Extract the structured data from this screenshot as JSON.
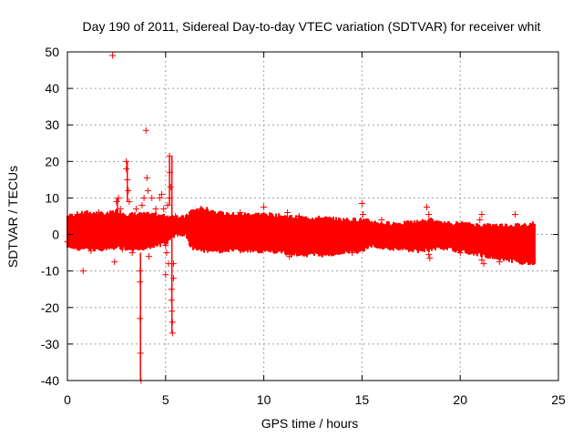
{
  "chart_data": {
    "type": "scatter",
    "title": "Day 190 of 2011, Sidereal Day-to-day VTEC variation (SDTVAR) for receiver whit",
    "xlabel": "GPS time / hours",
    "ylabel": "SDTVAR / TECUs",
    "xlim": [
      0,
      25
    ],
    "ylim": [
      -40,
      50
    ],
    "xticks": [
      0,
      5,
      10,
      15,
      20,
      25
    ],
    "yticks": [
      -40,
      -30,
      -20,
      -10,
      0,
      10,
      20,
      30,
      40,
      50
    ],
    "xtick_labels": [
      "0",
      "5",
      "10",
      "15",
      "20",
      "25"
    ],
    "ytick_labels": [
      "-40",
      "-30",
      "-20",
      "-10",
      "0",
      "10",
      "20",
      "30",
      "40",
      "50"
    ],
    "grid": true,
    "marker": "plus",
    "color": "#ff0000",
    "band": [
      {
        "t": 0.0,
        "lo": -3.0,
        "hi": 4.5
      },
      {
        "t": 1.0,
        "lo": -3.5,
        "hi": 5.5
      },
      {
        "t": 2.0,
        "lo": -3.5,
        "hi": 5.0
      },
      {
        "t": 2.5,
        "lo": -3.0,
        "hi": 6.0
      },
      {
        "t": 3.0,
        "lo": -3.5,
        "hi": 5.0
      },
      {
        "t": 3.5,
        "lo": -4.0,
        "hi": 5.0
      },
      {
        "t": 4.0,
        "lo": -3.0,
        "hi": 5.0
      },
      {
        "t": 4.5,
        "lo": -2.5,
        "hi": 5.0
      },
      {
        "t": 5.0,
        "lo": -2.0,
        "hi": 4.5
      },
      {
        "t": 5.5,
        "lo": 0.5,
        "hi": 4.5
      },
      {
        "t": 6.0,
        "lo": 0.5,
        "hi": 4.0
      },
      {
        "t": 6.3,
        "lo": -3.0,
        "hi": 6.0
      },
      {
        "t": 7.0,
        "lo": -4.0,
        "hi": 6.5
      },
      {
        "t": 8.0,
        "lo": -4.0,
        "hi": 5.0
      },
      {
        "t": 9.0,
        "lo": -4.0,
        "hi": 5.0
      },
      {
        "t": 10.0,
        "lo": -4.0,
        "hi": 5.0
      },
      {
        "t": 11.0,
        "lo": -4.5,
        "hi": 4.5
      },
      {
        "t": 12.0,
        "lo": -5.0,
        "hi": 4.0
      },
      {
        "t": 13.0,
        "lo": -5.0,
        "hi": 4.0
      },
      {
        "t": 14.0,
        "lo": -4.5,
        "hi": 3.5
      },
      {
        "t": 15.0,
        "lo": -4.0,
        "hi": 3.5
      },
      {
        "t": 15.5,
        "lo": -2.5,
        "hi": 3.0
      },
      {
        "t": 16.0,
        "lo": -3.0,
        "hi": 2.5
      },
      {
        "t": 17.0,
        "lo": -3.5,
        "hi": 2.5
      },
      {
        "t": 18.0,
        "lo": -4.0,
        "hi": 3.0
      },
      {
        "t": 18.5,
        "lo": -3.5,
        "hi": 3.5
      },
      {
        "t": 19.0,
        "lo": -3.0,
        "hi": 2.5
      },
      {
        "t": 20.0,
        "lo": -4.0,
        "hi": 2.5
      },
      {
        "t": 21.0,
        "lo": -5.0,
        "hi": 2.0
      },
      {
        "t": 22.0,
        "lo": -6.0,
        "hi": 2.0
      },
      {
        "t": 23.0,
        "lo": -7.0,
        "hi": 2.0
      },
      {
        "t": 23.8,
        "lo": -7.5,
        "hi": 2.5
      }
    ],
    "outliers": [
      {
        "x": 0.0,
        "y": -2.0
      },
      {
        "x": 0.1,
        "y": 4.5
      },
      {
        "x": 0.5,
        "y": 5.5
      },
      {
        "x": 0.8,
        "y": -10.0
      },
      {
        "x": 1.2,
        "y": -4.5
      },
      {
        "x": 1.6,
        "y": 6.0
      },
      {
        "x": 2.2,
        "y": 3.5
      },
      {
        "x": 2.3,
        "y": 49.0
      },
      {
        "x": 2.4,
        "y": -7.5
      },
      {
        "x": 2.5,
        "y": 9.0
      },
      {
        "x": 2.6,
        "y": 10.0
      },
      {
        "x": 2.7,
        "y": 7.0
      },
      {
        "x": 2.8,
        "y": -4.0
      },
      {
        "x": 3.0,
        "y": 20.0
      },
      {
        "x": 3.0,
        "y": 18.0
      },
      {
        "x": 3.05,
        "y": 15.0
      },
      {
        "x": 3.1,
        "y": 12.0
      },
      {
        "x": 3.15,
        "y": 9.0
      },
      {
        "x": 3.0,
        "y": -3.0
      },
      {
        "x": 3.3,
        "y": -5.0
      },
      {
        "x": 3.5,
        "y": 7.0
      },
      {
        "x": 3.6,
        "y": -3.0
      },
      {
        "x": 3.7,
        "y": -10.0
      },
      {
        "x": 3.7,
        "y": -13.0
      },
      {
        "x": 3.7,
        "y": -23.0
      },
      {
        "x": 3.72,
        "y": -32.5
      },
      {
        "x": 3.75,
        "y": -40.0
      },
      {
        "x": 3.8,
        "y": 8.0
      },
      {
        "x": 3.9,
        "y": 10.0
      },
      {
        "x": 4.0,
        "y": 28.5
      },
      {
        "x": 4.05,
        "y": 15.5
      },
      {
        "x": 4.1,
        "y": 12.0
      },
      {
        "x": 4.15,
        "y": -6.0
      },
      {
        "x": 4.3,
        "y": 10.0
      },
      {
        "x": 4.5,
        "y": 7.0
      },
      {
        "x": 4.7,
        "y": 10.0
      },
      {
        "x": 4.8,
        "y": 11.0
      },
      {
        "x": 4.9,
        "y": 7.0
      },
      {
        "x": 5.0,
        "y": -3.0
      },
      {
        "x": 5.0,
        "y": -11.0
      },
      {
        "x": 5.05,
        "y": -5.0
      },
      {
        "x": 5.1,
        "y": 8.0
      },
      {
        "x": 5.15,
        "y": -8.0
      },
      {
        "x": 5.2,
        "y": 10.0
      },
      {
        "x": 5.2,
        "y": 21.5
      },
      {
        "x": 5.22,
        "y": 17.0
      },
      {
        "x": 5.25,
        "y": 13.0
      },
      {
        "x": 5.3,
        "y": -15.0
      },
      {
        "x": 5.3,
        "y": -18.0
      },
      {
        "x": 5.32,
        "y": -21.0
      },
      {
        "x": 5.35,
        "y": -24.0
      },
      {
        "x": 5.35,
        "y": -27.0
      },
      {
        "x": 5.4,
        "y": -12.0
      },
      {
        "x": 5.4,
        "y": -8.0
      },
      {
        "x": 5.5,
        "y": 5.0
      },
      {
        "x": 6.0,
        "y": 4.5
      },
      {
        "x": 6.8,
        "y": 7.0
      },
      {
        "x": 8.8,
        "y": 6.0
      },
      {
        "x": 10.0,
        "y": 7.5
      },
      {
        "x": 10.5,
        "y": -4.0
      },
      {
        "x": 11.2,
        "y": 6.0
      },
      {
        "x": 11.3,
        "y": -6.0
      },
      {
        "x": 11.4,
        "y": -5.5
      },
      {
        "x": 11.8,
        "y": 5.0
      },
      {
        "x": 13.0,
        "y": -5.5
      },
      {
        "x": 14.5,
        "y": -5.0
      },
      {
        "x": 15.0,
        "y": 8.5
      },
      {
        "x": 15.05,
        "y": 5.5
      },
      {
        "x": 16.0,
        "y": 4.0
      },
      {
        "x": 17.4,
        "y": -4.0
      },
      {
        "x": 18.3,
        "y": 7.5
      },
      {
        "x": 18.4,
        "y": 5.5
      },
      {
        "x": 18.4,
        "y": -5.5
      },
      {
        "x": 18.45,
        "y": -6.5
      },
      {
        "x": 20.0,
        "y": -5.0
      },
      {
        "x": 21.0,
        "y": 4.0
      },
      {
        "x": 21.1,
        "y": 5.5
      },
      {
        "x": 21.1,
        "y": -7.0
      },
      {
        "x": 21.2,
        "y": -8.0
      },
      {
        "x": 22.0,
        "y": -7.5
      },
      {
        "x": 22.8,
        "y": 5.5
      },
      {
        "x": 23.0,
        "y": -6.0
      },
      {
        "x": 23.5,
        "y": -7.5
      },
      {
        "x": 23.7,
        "y": -7.0
      }
    ]
  }
}
